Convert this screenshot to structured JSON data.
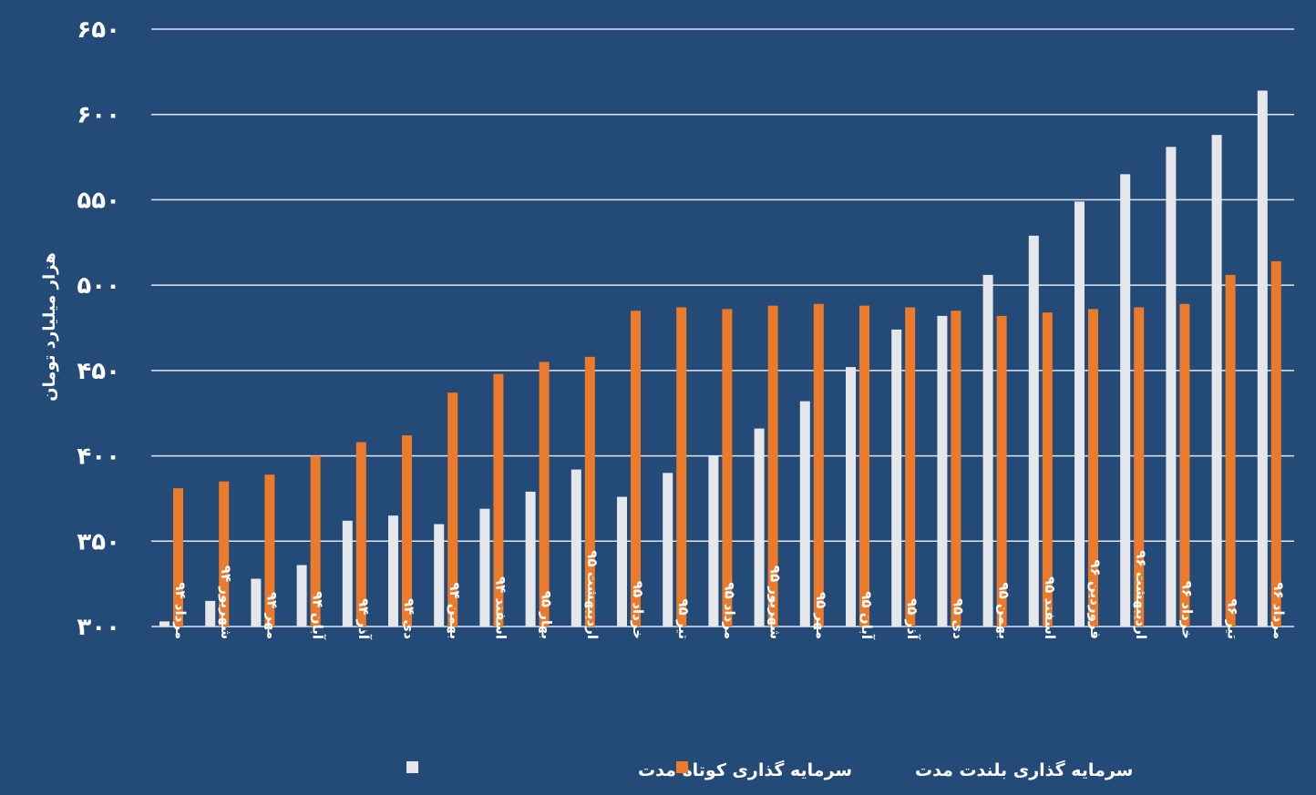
{
  "colors": {
    "background": "#244b77",
    "short_term": "#e6e7ea",
    "long_term": "#ec7a2b",
    "grid": "#dfe6ef"
  },
  "chart_data": {
    "type": "bar",
    "ylabel": "هزار میلیارد تومان",
    "ylim": [
      300,
      650
    ],
    "yticks": [
      {
        "value": 300,
        "label": "۳۰۰"
      },
      {
        "value": 350,
        "label": "۳۵۰"
      },
      {
        "value": 400,
        "label": "۴۰۰"
      },
      {
        "value": 450,
        "label": "۴۵۰"
      },
      {
        "value": 500,
        "label": "۵۰۰"
      },
      {
        "value": 550,
        "label": "۵۵۰"
      },
      {
        "value": 600,
        "label": "۶۰۰"
      },
      {
        "value": 650,
        "label": "۶۵۰"
      }
    ],
    "grid": true,
    "legend_position": "bottom",
    "categories": [
      "مرداد ۹۴",
      "شهریور ۹۴",
      "مهر ۹۴",
      "آبان ۹۴",
      "آذر ۹۴",
      "دی ۹۴",
      "بهمن ۹۴",
      "اسفند ۹۴",
      "بهار ۹۵",
      "اردیبهشت ۹۵",
      "خرداد ۹۵",
      "تیر ۹۵",
      "مرداد ۹۵",
      "شهریور ۹۵",
      "مهر ۹۵",
      "آبان ۹۵",
      "آذر ۹۵",
      "دی ۹۵",
      "بهمن ۹۵",
      "اسفند ۹۵",
      "فروردین ۹۶",
      "اردیبهشت ۹۶",
      "خرداد ۹۶",
      "تیر ۹۶",
      "مرداد ۹۶"
    ],
    "series": [
      {
        "name": "سرمایه گذاری کوتاه مدت",
        "values": [
          303,
          315,
          328,
          336,
          362,
          365,
          360,
          369,
          379,
          392,
          376,
          390,
          400,
          416,
          432,
          452,
          474,
          482,
          506,
          529,
          549,
          565,
          581,
          588,
          614
        ]
      },
      {
        "name": "سرمایه گذاری بلندت مدت",
        "values": [
          381,
          385,
          389,
          400,
          408,
          412,
          437,
          448,
          455,
          458,
          485,
          487,
          486,
          488,
          489,
          488,
          487,
          485,
          482,
          484,
          486,
          487,
          489,
          506,
          514
        ]
      }
    ]
  }
}
